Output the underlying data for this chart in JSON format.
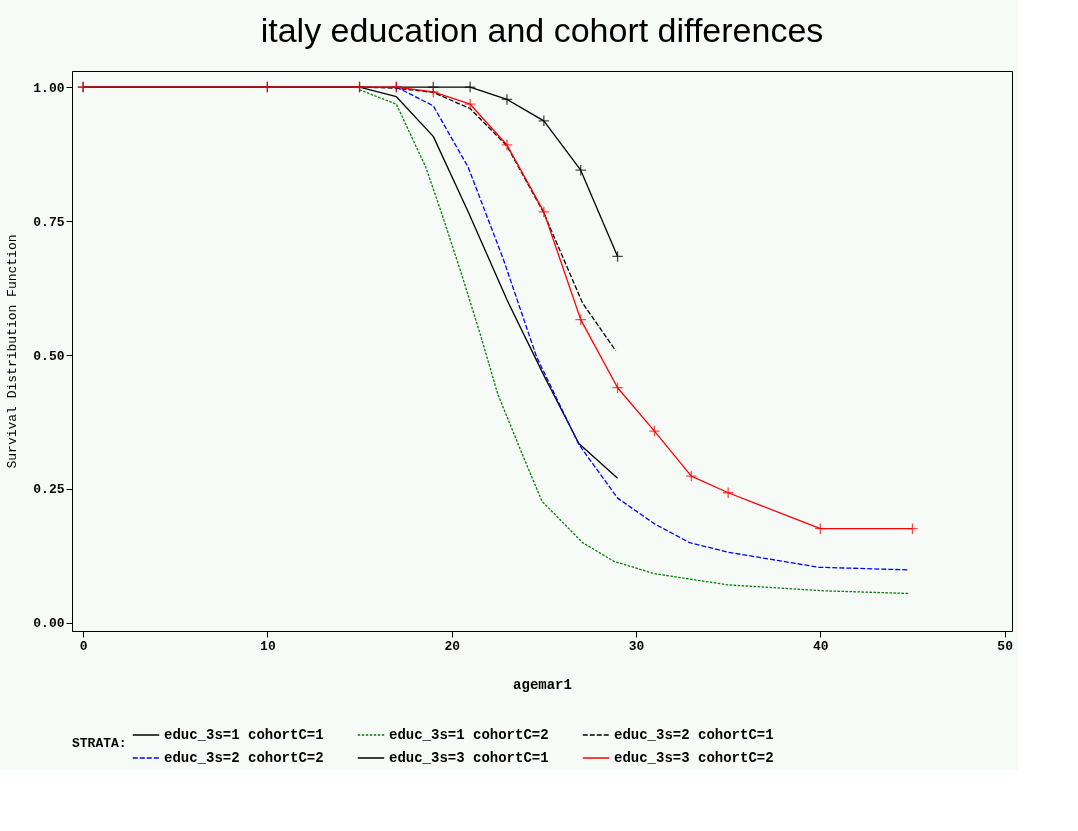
{
  "chart_data": {
    "type": "line",
    "title": "italy education and cohort differences",
    "xlabel": "agemar1",
    "ylabel": "Survival Distribution Function",
    "legend_title": "STRATA:",
    "legend": "bottom",
    "grid": false,
    "xlim": [
      -0.6,
      50.4
    ],
    "ylim": [
      -0.015,
      1.03
    ],
    "xticks": [
      0,
      10,
      20,
      30,
      40,
      50
    ],
    "yticks": [
      {
        "value": 0,
        "label": "0.00"
      },
      {
        "value": 0.25,
        "label": "0.25"
      },
      {
        "value": 0.5,
        "label": "0.50"
      },
      {
        "value": 0.75,
        "label": "0.75"
      },
      {
        "value": 1,
        "label": "1.00"
      }
    ],
    "series": [
      {
        "name": "educ_3s=1 cohortC=1",
        "color": "#000000",
        "line_style": "solid",
        "x": [
          0,
          15,
          17,
          19,
          20.9,
          23,
          25,
          26.9,
          29
        ],
        "values": [
          1,
          1,
          0.982,
          0.908,
          0.767,
          0.603,
          0.462,
          0.335,
          0.27
        ]
      },
      {
        "name": "educ_3s=1 cohortC=2",
        "color": "#008000",
        "line_style": "dotted",
        "x": [
          15,
          17,
          18.6,
          19.5,
          20.6,
          21.6,
          22.5,
          23.9,
          24.9,
          27.1,
          28.8,
          31,
          35,
          40.2,
          44.8
        ],
        "values": [
          0.995,
          0.968,
          0.85,
          0.76,
          0.644,
          0.533,
          0.427,
          0.309,
          0.227,
          0.15,
          0.115,
          0.092,
          0.071,
          0.06,
          0.055
        ]
      },
      {
        "name": "educ_3s=2 cohortC=1",
        "color": "#000000",
        "line_style": "dashed",
        "x": [
          15,
          17,
          19,
          21,
          23,
          25,
          27.1,
          28.9
        ],
        "values": [
          1,
          0.998,
          0.99,
          0.96,
          0.89,
          0.765,
          0.597,
          0.508
        ]
      },
      {
        "name": "educ_3s=2 cohortC=2",
        "color": "#0000ff",
        "line_style": "dashed",
        "x": [
          17,
          19,
          20.9,
          22.8,
          24.6,
          26.9,
          29,
          31,
          32.9,
          35,
          39.9,
          44.8
        ],
        "values": [
          1,
          0.965,
          0.85,
          0.679,
          0.497,
          0.333,
          0.233,
          0.185,
          0.15,
          0.132,
          0.104,
          0.099
        ]
      },
      {
        "name": "educ_3s=3 cohortC=1",
        "color": "#000000",
        "line_style": "solid",
        "marker": "cross",
        "x": [
          0,
          10,
          15,
          17,
          19,
          21,
          23,
          25,
          27,
          29
        ],
        "values": [
          1,
          1,
          1,
          1,
          1,
          1,
          0.977,
          0.937,
          0.845,
          0.684
        ]
      },
      {
        "name": "educ_3s=3 cohortC=2",
        "color": "#ff0000",
        "line_style": "solid",
        "marker": "cross",
        "x": [
          0,
          10,
          15,
          17,
          19,
          21,
          23,
          25,
          27,
          29,
          31,
          33,
          35,
          40,
          45
        ],
        "values": [
          1,
          1,
          1,
          1,
          0.991,
          0.968,
          0.892,
          0.767,
          0.566,
          0.439,
          0.358,
          0.274,
          0.243,
          0.176,
          0.176
        ]
      }
    ]
  }
}
